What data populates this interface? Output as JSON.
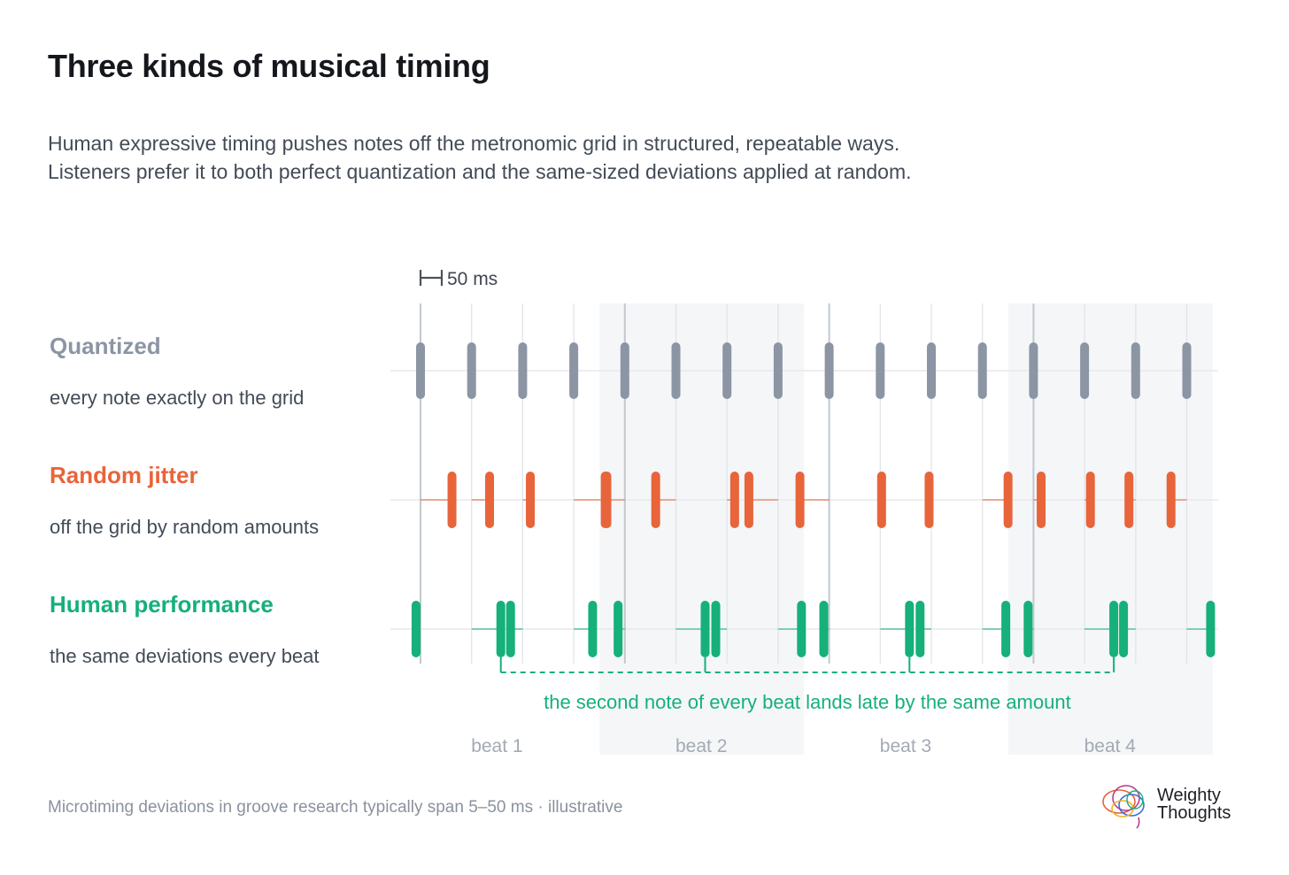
{
  "header": {
    "title": "Three kinds of musical timing",
    "subtitle_lines": [
      "Human expressive timing pushes notes off the metronomic grid in structured, repeatable ways.",
      "Listeners prefer it to both perfect quantization and the same-sized deviations applied at random."
    ]
  },
  "rows": [
    {
      "title": "Quantized",
      "desc": "every note exactly on the grid"
    },
    {
      "title": "Random jitter",
      "desc": "off the grid by random amounts"
    },
    {
      "title": "Human performance",
      "desc": "the same deviations every beat"
    }
  ],
  "chart_data": {
    "type": "timeline",
    "scale_bar_label": "50 ms",
    "scale_bar_ms": 50,
    "grid_step_ms": 250,
    "beats": [
      "beat 1",
      "beat 2",
      "beat 3",
      "beat 4"
    ],
    "notes_per_beat": 4,
    "annotation": "the second note of every beat lands late by the same amount",
    "series": [
      {
        "name": "Quantized",
        "color": "#8c95a3",
        "offsets_ms": [
          0,
          0,
          0,
          0,
          0,
          0,
          0,
          0,
          0,
          0,
          0,
          0,
          0,
          0,
          0,
          0
        ]
      },
      {
        "name": "Random jitter",
        "color": "#e8643a",
        "offsets_ms": [
          70,
          40,
          17,
          70,
          -40,
          -45,
          17,
          -65,
          -65,
          3,
          -5,
          57,
          17,
          13,
          -15,
          -35
        ]
      },
      {
        "name": "Human performance",
        "color": "#16b07a",
        "offsets_ms": [
          -10,
          65,
          -27,
          42,
          -15,
          65,
          -25,
          52,
          -12,
          65,
          -25,
          52,
          -12,
          65,
          -27,
          53
        ]
      }
    ]
  },
  "footer": {
    "note": "Microtiming deviations in groove research typically span 5–50 ms · illustrative",
    "brand_line1": "Weighty",
    "brand_line2": "Thoughts"
  }
}
